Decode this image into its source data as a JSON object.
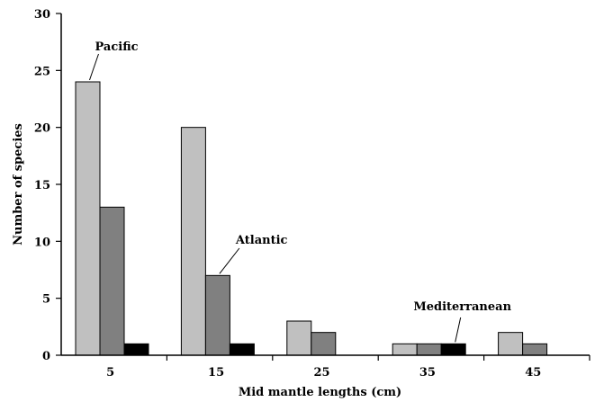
{
  "chart_data": {
    "type": "bar",
    "xlabel": "Mid mantle lengths (cm)",
    "ylabel": "Number of species",
    "ylim": [
      0,
      30
    ],
    "yticks": [
      0,
      5,
      10,
      15,
      20,
      25,
      30
    ],
    "categories": [
      "5",
      "15",
      "25",
      "35",
      "45"
    ],
    "series": [
      {
        "name": "Pacific",
        "color": "#c0c0c0",
        "values": [
          24,
          20,
          3,
          1,
          2
        ]
      },
      {
        "name": "Atlantic",
        "color": "#808080",
        "values": [
          13,
          7,
          2,
          1,
          1
        ]
      },
      {
        "name": "Mediterranean",
        "color": "#000000",
        "values": [
          1,
          1,
          0,
          1,
          0
        ]
      }
    ],
    "annotations": [
      {
        "text": "Pacific",
        "series": 0,
        "category": 0
      },
      {
        "text": "Atlantic",
        "series": 1,
        "category": 1
      },
      {
        "text": "Mediterranean",
        "series": 2,
        "category": 3
      }
    ],
    "grid": false,
    "legend": "none (series labelled by callouts)"
  }
}
